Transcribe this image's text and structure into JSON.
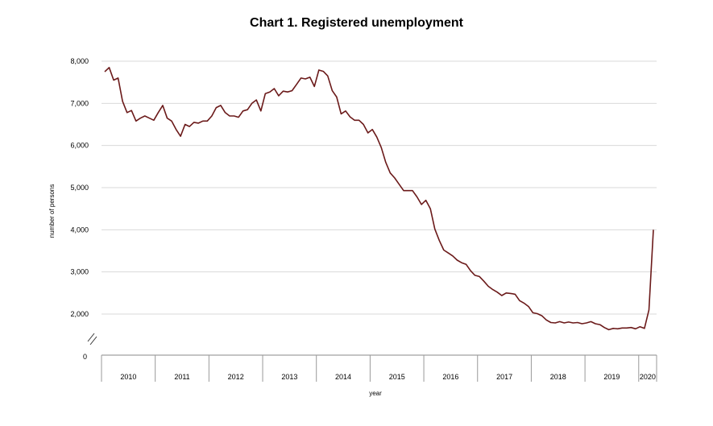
{
  "chart_data": {
    "type": "line",
    "title": "Chart 1.  Registered unemployment",
    "xlabel": "year",
    "ylabel": "number of persons",
    "ylim": [
      1500,
      8000
    ],
    "axis_break_label": "0",
    "grid": "horizontal",
    "y_ticks": [
      "8,000",
      "7,000",
      "6,000",
      "5,000",
      "4,000",
      "3,000",
      "2,000"
    ],
    "y_tick_values": [
      8000,
      7000,
      6000,
      5000,
      4000,
      3000,
      2000
    ],
    "years": [
      "2010",
      "2011",
      "2012",
      "2013",
      "2014",
      "2015",
      "2016",
      "2017",
      "2018",
      "2019",
      "2020"
    ],
    "line_color": "#6b1a1a",
    "series": [
      {
        "values": [
          7750,
          7850,
          7550,
          7600,
          7050,
          6780,
          6830,
          6580,
          6650,
          6700,
          6650,
          6600,
          6780,
          6950,
          6650,
          6580,
          6380,
          6220,
          6500,
          6450,
          6550,
          6530,
          6580,
          6580,
          6700,
          6900,
          6950,
          6780,
          6700,
          6700,
          6670,
          6820,
          6850,
          7000,
          7080,
          6820,
          7230,
          7270,
          7350,
          7180,
          7290,
          7270,
          7300,
          7450,
          7600,
          7580,
          7620,
          7400,
          7790,
          7760,
          7650,
          7300,
          7150,
          6750,
          6820,
          6680,
          6600,
          6600,
          6500,
          6300,
          6380,
          6200,
          5950,
          5600,
          5350,
          5230,
          5080,
          4930,
          4930,
          4930,
          4780,
          4600,
          4700,
          4500,
          4020,
          3750,
          3520,
          3450,
          3380,
          3280,
          3220,
          3180,
          3030,
          2920,
          2890,
          2780,
          2660,
          2580,
          2520,
          2440,
          2500,
          2490,
          2470,
          2320,
          2260,
          2180,
          2030,
          2010,
          1960,
          1860,
          1800,
          1790,
          1820,
          1790,
          1810,
          1790,
          1800,
          1770,
          1790,
          1820,
          1770,
          1750,
          1680,
          1630,
          1660,
          1650,
          1670,
          1670,
          1680,
          1650,
          1700,
          1660,
          2100,
          4000
        ]
      }
    ]
  }
}
